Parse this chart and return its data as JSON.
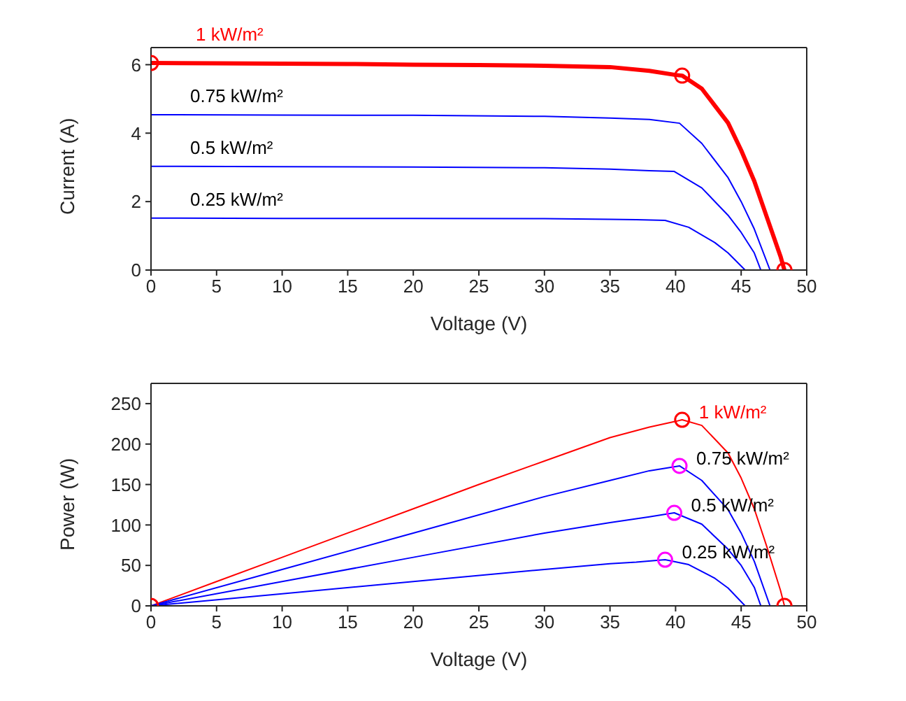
{
  "chart_data": [
    {
      "type": "line",
      "xlabel": "Voltage (V)",
      "ylabel": "Current (A)",
      "xlim": [
        0,
        50
      ],
      "xticks": [
        0,
        5,
        10,
        15,
        20,
        25,
        30,
        35,
        40,
        45,
        50
      ],
      "ylim": [
        0,
        6.5
      ],
      "yticks": [
        0,
        2,
        4,
        6
      ],
      "grid": false,
      "legend": false,
      "marker": "none",
      "line_style": "solid",
      "series": [
        {
          "name": "1 kW/m²",
          "color": "#ff0000",
          "x": [
            0,
            5,
            10,
            15,
            20,
            25,
            30,
            35,
            38,
            40,
            40.5,
            42,
            44,
            45,
            46,
            47,
            48,
            48.3
          ],
          "values": [
            6.05,
            6.04,
            6.03,
            6.02,
            6.0,
            5.99,
            5.97,
            5.93,
            5.82,
            5.7,
            5.68,
            5.3,
            4.3,
            3.5,
            2.6,
            1.5,
            0.4,
            0
          ]
        },
        {
          "name": "0.75 kW/m²",
          "color": "#0000ff",
          "x": [
            0,
            10,
            20,
            30,
            35,
            38,
            40.3,
            42,
            44,
            45,
            46,
            47.2
          ],
          "values": [
            4.54,
            4.53,
            4.52,
            4.49,
            4.44,
            4.4,
            4.29,
            3.7,
            2.7,
            2.0,
            1.2,
            0
          ]
        },
        {
          "name": "0.5 kW/m²",
          "color": "#0000ff",
          "x": [
            0,
            10,
            20,
            30,
            35,
            38,
            39.9,
            42,
            44,
            45,
            46,
            46.5
          ],
          "values": [
            3.03,
            3.02,
            3.01,
            2.99,
            2.95,
            2.9,
            2.88,
            2.4,
            1.6,
            1.1,
            0.5,
            0
          ]
        },
        {
          "name": "0.25 kW/m²",
          "color": "#0000ff",
          "x": [
            0,
            10,
            20,
            30,
            35,
            37,
            39.2,
            41,
            43,
            44,
            45.3
          ],
          "values": [
            1.52,
            1.51,
            1.51,
            1.5,
            1.48,
            1.47,
            1.45,
            1.25,
            0.8,
            0.5,
            0
          ]
        },
        {
          "type": "scatter",
          "marker": "circle",
          "color": "#ff0000",
          "x": [
            0,
            40.5,
            48.3
          ],
          "values": [
            6.05,
            5.68,
            0
          ]
        }
      ]
    },
    {
      "type": "line",
      "xlabel": "Voltage (V)",
      "ylabel": "Power (W)",
      "xlim": [
        0,
        50
      ],
      "xticks": [
        0,
        5,
        10,
        15,
        20,
        25,
        30,
        35,
        40,
        45,
        50
      ],
      "ylim": [
        0,
        275
      ],
      "yticks": [
        0,
        50,
        100,
        150,
        200,
        250
      ],
      "grid": false,
      "legend": false,
      "marker": "none",
      "line_style": "solid",
      "series": [
        {
          "name": "1 kW/m²",
          "color": "#ff0000",
          "x": [
            0,
            5,
            10,
            15,
            20,
            25,
            30,
            35,
            38,
            40,
            40.5,
            42,
            44,
            45,
            46,
            47,
            48,
            48.3
          ],
          "values": [
            0,
            30,
            60,
            90,
            120,
            150,
            179,
            208,
            221,
            228,
            230,
            223,
            189,
            158,
            120,
            71,
            19,
            0
          ]
        },
        {
          "name": "0.75 kW/m²",
          "color": "#0000ff",
          "x": [
            0,
            10,
            20,
            30,
            35,
            38,
            40.3,
            42,
            44,
            45,
            46,
            47.2
          ],
          "values": [
            0,
            45,
            90,
            135,
            155,
            167,
            173,
            155,
            119,
            90,
            55,
            0
          ]
        },
        {
          "name": "0.5 kW/m²",
          "color": "#0000ff",
          "x": [
            0,
            10,
            20,
            30,
            35,
            38,
            39.9,
            42,
            44,
            45,
            46,
            46.5
          ],
          "values": [
            0,
            30,
            60,
            90,
            103,
            110,
            115,
            101,
            70,
            50,
            23,
            0
          ]
        },
        {
          "name": "0.25 kW/m²",
          "color": "#0000ff",
          "x": [
            0,
            10,
            20,
            30,
            35,
            37,
            39.2,
            41,
            43,
            44,
            45.3
          ],
          "values": [
            0,
            15,
            30,
            45,
            52,
            54,
            57,
            51,
            34,
            22,
            0
          ]
        },
        {
          "type": "scatter",
          "marker": "circle",
          "color": "#ff0000",
          "x": [
            0,
            40.5,
            48.3
          ],
          "values": [
            0,
            230,
            0
          ]
        },
        {
          "type": "scatter",
          "marker": "circle",
          "color": "#ff00ff",
          "x": [
            40.3,
            39.9,
            39.2
          ],
          "values": [
            173,
            115,
            57
          ]
        }
      ]
    }
  ]
}
